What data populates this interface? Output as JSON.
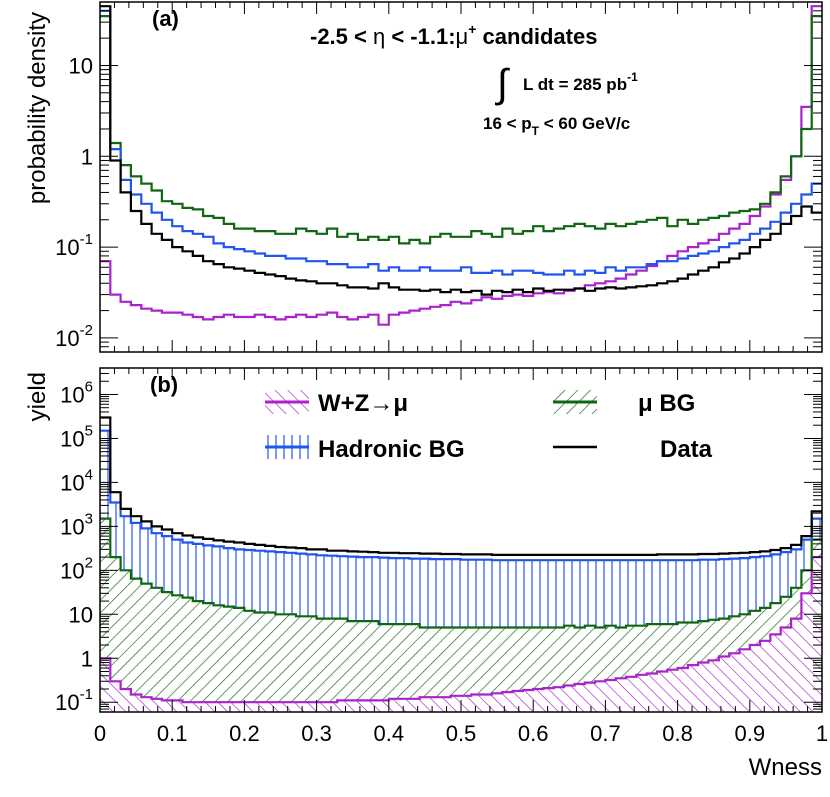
{
  "figure": {
    "x_tick_labels": [
      "0",
      "0.1",
      "0.2",
      "0.3",
      "0.4",
      "0.5",
      "0.6",
      "0.7",
      "0.8",
      "0.9",
      "1"
    ],
    "x_label": "Wness"
  },
  "chart_data": [
    {
      "type": "line",
      "panel_label": "(a)",
      "title": "-2.5 < η < -1.1: μ⁺ candidates",
      "title_parts": {
        "left": "-2.5 < ",
        "eta": "η",
        "mid": " < -1.1:",
        "mu": "μ",
        "sup": "+",
        "right": " candidates"
      },
      "luminosity": {
        "integral": "∫",
        "text": "L dt = 285 pb",
        "sup": "-1"
      },
      "pt_cut": {
        "pre": "16 < p",
        "sub": "T",
        "post": " < 60 GeV/c"
      },
      "ylabel": "probability density",
      "xlim": [
        0,
        1
      ],
      "ylim": [
        0.007,
        50
      ],
      "log_y": true,
      "y_ticks": [
        {
          "value": 0.01,
          "base": "10",
          "exp": "-2"
        },
        {
          "value": 0.1,
          "base": "10",
          "exp": "-1"
        },
        {
          "value": 1,
          "base": "1",
          "exp": ""
        },
        {
          "value": 10,
          "base": "10",
          "exp": ""
        }
      ],
      "series": [
        {
          "name": "W+Z→μ",
          "color": "#aa22cc",
          "values": [
            0.07,
            0.03,
            0.025,
            0.023,
            0.021,
            0.02,
            0.019,
            0.019,
            0.018,
            0.017,
            0.016,
            0.017,
            0.018,
            0.017,
            0.017,
            0.018,
            0.017,
            0.016,
            0.017,
            0.018,
            0.017,
            0.018,
            0.019,
            0.017,
            0.016,
            0.017,
            0.018,
            0.014,
            0.018,
            0.019,
            0.02,
            0.021,
            0.022,
            0.023,
            0.025,
            0.024,
            0.026,
            0.028,
            0.027,
            0.029,
            0.03,
            0.029,
            0.031,
            0.032,
            0.031,
            0.033,
            0.035,
            0.038,
            0.04,
            0.042,
            0.045,
            0.05,
            0.055,
            0.062,
            0.07,
            0.08,
            0.09,
            0.1,
            0.11,
            0.12,
            0.14,
            0.16,
            0.18,
            0.22,
            0.28,
            0.38,
            0.55,
            1.0,
            3.5,
            45
          ]
        },
        {
          "name": "μ BG",
          "color": "#116611",
          "values": [
            35,
            1.4,
            0.8,
            0.6,
            0.5,
            0.42,
            0.32,
            0.3,
            0.27,
            0.26,
            0.22,
            0.21,
            0.18,
            0.16,
            0.16,
            0.15,
            0.15,
            0.14,
            0.14,
            0.16,
            0.15,
            0.14,
            0.16,
            0.13,
            0.14,
            0.12,
            0.13,
            0.12,
            0.13,
            0.11,
            0.12,
            0.11,
            0.13,
            0.14,
            0.13,
            0.13,
            0.15,
            0.14,
            0.13,
            0.16,
            0.14,
            0.15,
            0.17,
            0.15,
            0.16,
            0.17,
            0.18,
            0.17,
            0.16,
            0.18,
            0.17,
            0.18,
            0.19,
            0.2,
            0.21,
            0.17,
            0.2,
            0.18,
            0.2,
            0.21,
            0.22,
            0.24,
            0.25,
            0.26,
            0.3,
            0.4,
            0.6,
            1.0,
            2.0,
            35
          ]
        },
        {
          "name": "Hadronic BG",
          "color": "#2255ee",
          "values": [
            40,
            1.2,
            0.55,
            0.38,
            0.3,
            0.24,
            0.2,
            0.17,
            0.15,
            0.14,
            0.13,
            0.11,
            0.1,
            0.095,
            0.09,
            0.085,
            0.08,
            0.08,
            0.075,
            0.075,
            0.07,
            0.07,
            0.065,
            0.065,
            0.06,
            0.06,
            0.065,
            0.055,
            0.06,
            0.055,
            0.055,
            0.06,
            0.055,
            0.055,
            0.055,
            0.06,
            0.052,
            0.052,
            0.055,
            0.05,
            0.055,
            0.055,
            0.052,
            0.05,
            0.05,
            0.055,
            0.05,
            0.055,
            0.052,
            0.06,
            0.055,
            0.06,
            0.06,
            0.065,
            0.07,
            0.07,
            0.075,
            0.08,
            0.085,
            0.09,
            0.1,
            0.11,
            0.12,
            0.14,
            0.16,
            0.19,
            0.24,
            0.3,
            0.38,
            0.5
          ]
        },
        {
          "name": "Data",
          "color": "#000000",
          "values": [
            45,
            0.9,
            0.4,
            0.25,
            0.18,
            0.14,
            0.12,
            0.1,
            0.09,
            0.08,
            0.07,
            0.065,
            0.06,
            0.058,
            0.055,
            0.052,
            0.05,
            0.048,
            0.045,
            0.043,
            0.042,
            0.04,
            0.04,
            0.038,
            0.036,
            0.036,
            0.035,
            0.04,
            0.036,
            0.034,
            0.034,
            0.033,
            0.034,
            0.032,
            0.034,
            0.032,
            0.033,
            0.03,
            0.033,
            0.032,
            0.034,
            0.032,
            0.035,
            0.033,
            0.034,
            0.034,
            0.035,
            0.033,
            0.035,
            0.036,
            0.035,
            0.036,
            0.037,
            0.038,
            0.04,
            0.042,
            0.045,
            0.05,
            0.055,
            0.06,
            0.068,
            0.075,
            0.085,
            0.1,
            0.12,
            0.14,
            0.18,
            0.22,
            0.28,
            0.24
          ]
        }
      ]
    },
    {
      "type": "area",
      "stacked": true,
      "panel_label": "(b)",
      "ylabel": "yield",
      "xlabel": "Wness",
      "xlim": [
        0,
        1
      ],
      "ylim": [
        0.06,
        4000000
      ],
      "log_y": true,
      "y_ticks": [
        {
          "value": 0.1,
          "base": "10",
          "exp": "-1"
        },
        {
          "value": 1,
          "base": "1",
          "exp": ""
        },
        {
          "value": 10,
          "base": "10",
          "exp": ""
        },
        {
          "value": 100,
          "base": "10",
          "exp": "2"
        },
        {
          "value": 1000,
          "base": "10",
          "exp": "3"
        },
        {
          "value": 10000,
          "base": "10",
          "exp": "4"
        },
        {
          "value": 100000,
          "base": "10",
          "exp": "5"
        },
        {
          "value": 1000000,
          "base": "10",
          "exp": "6"
        }
      ],
      "legend": [
        {
          "label": "W+Z→μ",
          "style": "hatch-purple"
        },
        {
          "label": "μ BG",
          "style": "hatch-green"
        },
        {
          "label": "Hadronic BG",
          "style": "vlines-blue"
        },
        {
          "label": "Data",
          "style": "line-black"
        }
      ],
      "series": [
        {
          "name": "W+Z→μ",
          "color": "#aa22cc",
          "values": [
            1.0,
            0.3,
            0.2,
            0.15,
            0.13,
            0.12,
            0.11,
            0.11,
            0.1,
            0.1,
            0.1,
            0.1,
            0.1,
            0.1,
            0.1,
            0.1,
            0.1,
            0.1,
            0.1,
            0.1,
            0.1,
            0.1,
            0.1,
            0.11,
            0.11,
            0.11,
            0.11,
            0.11,
            0.12,
            0.12,
            0.12,
            0.13,
            0.13,
            0.13,
            0.14,
            0.14,
            0.15,
            0.15,
            0.16,
            0.17,
            0.18,
            0.19,
            0.2,
            0.21,
            0.22,
            0.24,
            0.26,
            0.28,
            0.3,
            0.32,
            0.35,
            0.38,
            0.42,
            0.45,
            0.5,
            0.55,
            0.6,
            0.7,
            0.8,
            0.9,
            1.1,
            1.3,
            1.6,
            2.0,
            2.5,
            3.5,
            5,
            8,
            30,
            200
          ]
        },
        {
          "name": "μ BG",
          "color": "#116611",
          "values": [
            1500,
            200,
            100,
            65,
            50,
            40,
            32,
            27,
            24,
            20,
            18,
            16,
            15,
            14,
            12,
            11,
            11,
            10,
            10,
            9,
            9,
            8,
            8,
            8,
            7,
            7,
            7,
            6,
            6,
            6,
            6,
            5,
            5,
            5,
            5,
            5,
            5,
            5,
            5,
            5,
            5,
            5,
            5,
            5,
            5,
            5.5,
            5,
            5.5,
            5,
            5.5,
            5,
            5.5,
            5.5,
            6,
            6,
            6,
            6.5,
            6.5,
            7,
            7.5,
            8,
            9,
            10,
            12,
            14,
            18,
            25,
            40,
            100,
            500
          ]
        },
        {
          "name": "Hadronic BG",
          "color": "#2255ee",
          "values": [
            150000,
            3500,
            1700,
            1200,
            900,
            700,
            600,
            500,
            430,
            400,
            370,
            350,
            320,
            300,
            290,
            280,
            270,
            260,
            250,
            240,
            230,
            220,
            215,
            210,
            205,
            200,
            200,
            195,
            190,
            190,
            185,
            185,
            180,
            180,
            180,
            175,
            175,
            175,
            170,
            170,
            170,
            170,
            170,
            170,
            170,
            170,
            170,
            170,
            170,
            170,
            170,
            170,
            170,
            170,
            170,
            170,
            170,
            170,
            175,
            175,
            180,
            185,
            190,
            200,
            210,
            230,
            260,
            300,
            500,
            1500
          ]
        },
        {
          "name": "Data",
          "color": "#000000",
          "values": [
            300000,
            6000,
            2500,
            1700,
            1300,
            1000,
            850,
            700,
            620,
            560,
            520,
            480,
            450,
            430,
            400,
            380,
            360,
            340,
            330,
            320,
            300,
            300,
            280,
            280,
            270,
            265,
            260,
            250,
            250,
            245,
            245,
            240,
            240,
            235,
            235,
            230,
            230,
            230,
            225,
            225,
            225,
            225,
            225,
            225,
            225,
            225,
            225,
            225,
            225,
            225,
            225,
            225,
            225,
            225,
            230,
            230,
            230,
            230,
            235,
            235,
            240,
            245,
            250,
            260,
            270,
            290,
            320,
            380,
            600,
            2200
          ]
        }
      ]
    }
  ]
}
